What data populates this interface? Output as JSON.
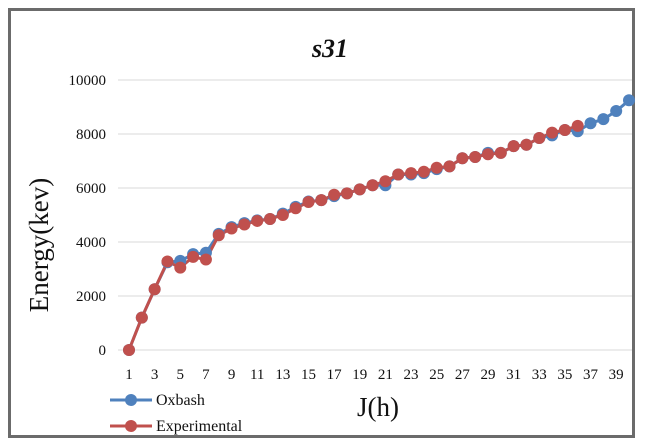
{
  "chart_data": {
    "type": "line",
    "title": "s31",
    "xlabel": "J(h)",
    "ylabel": "Energy(kev)",
    "ylim": [
      0,
      10000
    ],
    "yticks": [
      "0",
      "2000",
      "4000",
      "6000",
      "8000",
      "10000"
    ],
    "xticks": [
      "1",
      "3",
      "5",
      "7",
      "9",
      "11",
      "13",
      "15",
      "17",
      "19",
      "21",
      "23",
      "25",
      "27",
      "29",
      "31",
      "33",
      "35",
      "37",
      "39"
    ],
    "grid": "horizontal",
    "legend_position": "bottom-left",
    "series": [
      {
        "name": "Oxbash",
        "color": "#4f81bd",
        "x": [
          1,
          2,
          3,
          4,
          5,
          6,
          7,
          8,
          9,
          10,
          11,
          12,
          13,
          14,
          15,
          16,
          17,
          18,
          19,
          20,
          21,
          22,
          23,
          24,
          25,
          26,
          27,
          28,
          29,
          30,
          31,
          32,
          33,
          34,
          35,
          36,
          37,
          38,
          39,
          40
        ],
        "values": [
          0,
          1200,
          2250,
          3250,
          3300,
          3550,
          3600,
          4300,
          4550,
          4700,
          4800,
          4850,
          5050,
          5300,
          5500,
          5550,
          5700,
          5800,
          5950,
          6100,
          6100,
          6500,
          6500,
          6550,
          6700,
          6800,
          7100,
          7150,
          7300,
          7300,
          7550,
          7600,
          7850,
          7950,
          8150,
          8100,
          8400,
          8550,
          8850,
          9250
        ]
      },
      {
        "name": "Experimental",
        "color": "#c0504d",
        "x": [
          1,
          2,
          3,
          4,
          5,
          6,
          7,
          8,
          9,
          10,
          11,
          12,
          13,
          14,
          15,
          16,
          17,
          18,
          19,
          20,
          21,
          22,
          23,
          24,
          25,
          26,
          27,
          28,
          29,
          30,
          31,
          32,
          33,
          34,
          35,
          36
        ],
        "values": [
          0,
          1200,
          2250,
          3280,
          3050,
          3450,
          3350,
          4250,
          4500,
          4650,
          4780,
          4850,
          5000,
          5250,
          5480,
          5550,
          5750,
          5800,
          5950,
          6100,
          6250,
          6500,
          6550,
          6600,
          6750,
          6800,
          7100,
          7150,
          7250,
          7300,
          7550,
          7600,
          7850,
          8050,
          8150,
          8300
        ]
      }
    ]
  }
}
